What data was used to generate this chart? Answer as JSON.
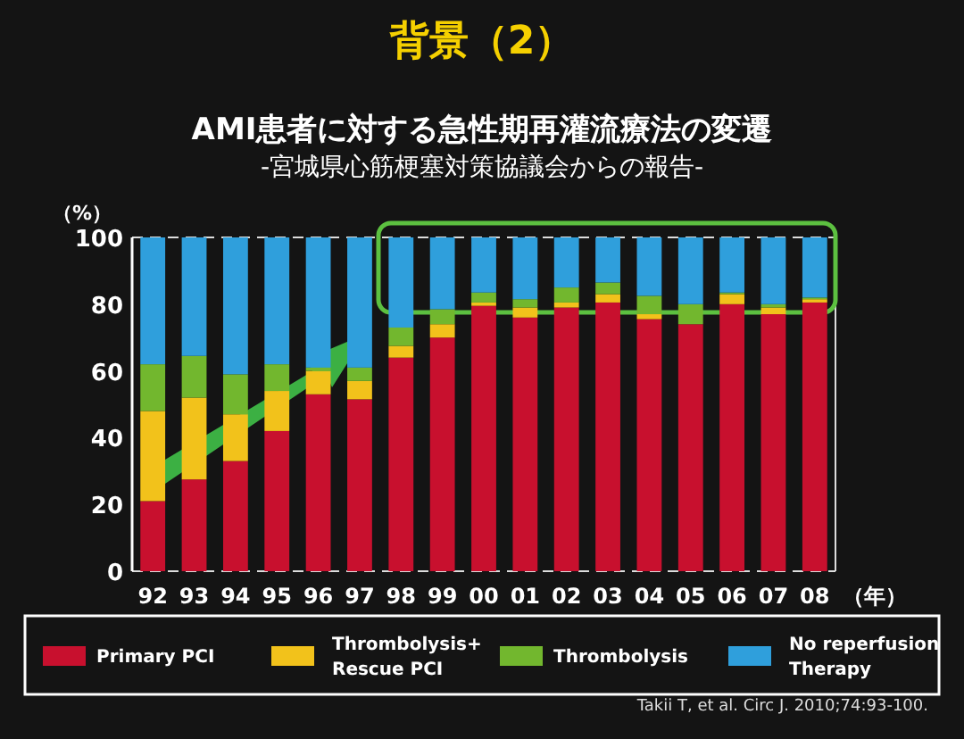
{
  "chart_data": {
    "type": "bar",
    "stacked": true,
    "title": "背景（2）",
    "subtitle": "AMI患者に対する急性期再灌流療法の変遷",
    "ylabel": "（%）",
    "xlabel": "（年）",
    "categories": [
      "92",
      "93",
      "94",
      "95",
      "96",
      "97",
      "98",
      "99",
      "00",
      "01",
      "02",
      "03",
      "04",
      "05",
      "06",
      "07",
      "08"
    ],
    "series": [
      {
        "name": "Primary PCI",
        "color": "#c8102e",
        "values": [
          21,
          27.5,
          33,
          42,
          53,
          51.5,
          64,
          70,
          79.5,
          76,
          79,
          80.5,
          75.5,
          74,
          80,
          77,
          80.5
        ]
      },
      {
        "name": "Thrombolysis+ Rescue PCI",
        "color": "#f2c21b",
        "values": [
          27,
          24.5,
          14,
          12,
          7,
          5.5,
          3.5,
          4,
          1,
          3,
          1.5,
          2.5,
          1.5,
          0,
          3,
          2,
          1
        ]
      },
      {
        "name": "Thrombolysis",
        "color": "#72b72e",
        "values": [
          14,
          12.5,
          12,
          8,
          1,
          4,
          5.5,
          4.5,
          3,
          2.5,
          4.5,
          3.5,
          5.5,
          6,
          0.5,
          1,
          0.5
        ]
      },
      {
        "name": "No reperfusion Therapy",
        "color": "#2f9fdc",
        "values": [
          38,
          35.5,
          41,
          38,
          39,
          39,
          27,
          21.5,
          16.5,
          18.5,
          15,
          13.5,
          17.5,
          20,
          16.5,
          20,
          18
        ]
      }
    ],
    "ylim": [
      0,
      100
    ],
    "yticks": [
      0,
      20,
      40,
      60,
      80,
      100
    ],
    "grid": false,
    "legend": "bottom",
    "annotations": [
      "-宮城県心筋梗塞対策協議会からの報告-",
      "Takii T, et al. Circ J. 2010;74:93-100."
    ]
  }
}
